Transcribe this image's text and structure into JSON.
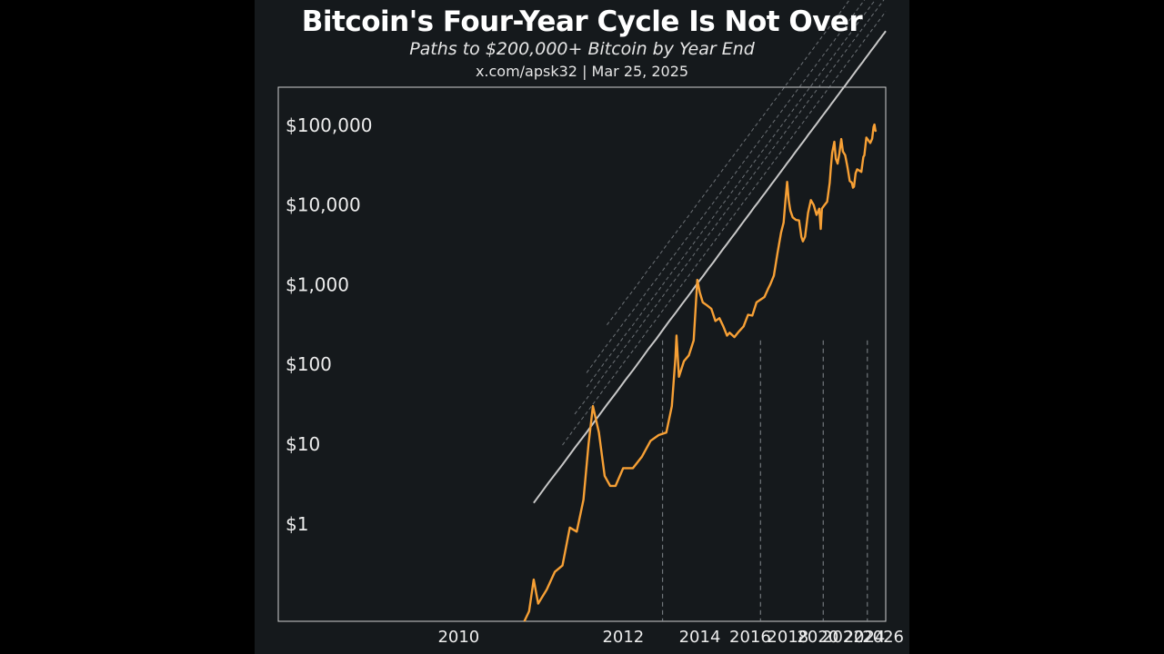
{
  "header": {
    "title": "Bitcoin's Four-Year Cycle Is Not Over",
    "subtitle": "Paths to $200,000+ Bitcoin by Year End",
    "source": "x.com/apsk32 | Mar 25, 2025"
  },
  "colors": {
    "background": "#15191c",
    "price_line": "#f7a035",
    "power_law_floor": "#c8c8c8",
    "channel_lines": "#8a8f94",
    "halving_lines": "#8a8f94",
    "frame": "#d0d0d0"
  },
  "chart_data": {
    "type": "line",
    "title": "Bitcoin's Four-Year Cycle Is Not Over",
    "subtitle": "Paths to $200,000+ Bitcoin by Year End",
    "xlabel": "",
    "ylabel": "",
    "y_scale": "log",
    "xlim": [
      2009.3,
      2026.3
    ],
    "ylim": [
      0.06,
      300000
    ],
    "grid": false,
    "x_ticks": [
      2010,
      2012,
      2014,
      2016,
      2018,
      2020,
      2022,
      2024,
      2026
    ],
    "x_tick_labels": [
      "2010",
      "2012",
      "2014",
      "2016",
      "2018",
      "2020",
      "2022",
      "2024",
      "2026"
    ],
    "y_ticks": [
      1,
      10,
      100,
      1000,
      10000,
      100000
    ],
    "y_tick_labels": [
      "$1",
      "$10",
      "$100",
      "$1,000",
      "$10,000",
      "$100,000"
    ],
    "halving_dates": [
      2012.9,
      2016.5,
      2020.4,
      2024.3
    ],
    "series": [
      {
        "style": "orange-solid",
        "x": [
          2010.55,
          2010.6,
          2010.65,
          2010.7,
          2010.8,
          2010.9,
          2011.0,
          2011.1,
          2011.2,
          2011.3,
          2011.38,
          2011.45,
          2011.55,
          2011.65,
          2011.75,
          2011.85,
          2012.0,
          2012.2,
          2012.4,
          2012.6,
          2012.8,
          2013.0,
          2013.15,
          2013.25,
          2013.28,
          2013.35,
          2013.5,
          2013.65,
          2013.8,
          2013.92,
          2014.0,
          2014.1,
          2014.25,
          2014.4,
          2014.55,
          2014.7,
          2014.85,
          2015.0,
          2015.1,
          2015.3,
          2015.5,
          2015.7,
          2015.9,
          2016.1,
          2016.3,
          2016.5,
          2016.7,
          2016.9,
          2017.0,
          2017.2,
          2017.4,
          2017.6,
          2017.75,
          2017.85,
          2017.96,
          2018.05,
          2018.15,
          2018.3,
          2018.5,
          2018.7,
          2018.85,
          2018.95,
          2019.1,
          2019.3,
          2019.5,
          2019.7,
          2019.9,
          2020.1,
          2020.21,
          2020.3,
          2020.5,
          2020.7,
          2020.9,
          2021.0,
          2021.1,
          2021.28,
          2021.4,
          2021.55,
          2021.7,
          2021.86,
          2022.0,
          2022.2,
          2022.4,
          2022.6,
          2022.8,
          2022.9,
          2023.0,
          2023.15,
          2023.3,
          2023.5,
          2023.7,
          2023.9,
          2024.0,
          2024.2,
          2024.4,
          2024.6,
          2024.8,
          2024.95,
          2025.05,
          2025.15,
          2025.23
        ],
        "y": [
          0.06,
          0.08,
          0.2,
          0.1,
          0.15,
          0.25,
          0.3,
          0.9,
          0.8,
          2,
          10,
          30,
          14,
          4,
          3,
          3,
          5,
          5,
          7,
          11,
          13,
          14,
          30,
          120,
          230,
          70,
          110,
          130,
          200,
          1150,
          800,
          600,
          550,
          500,
          350,
          380,
          300,
          230,
          250,
          220,
          260,
          300,
          420,
          410,
          600,
          650,
          700,
          900,
          1000,
          1300,
          2500,
          4500,
          6000,
          11000,
          19500,
          11500,
          8500,
          7000,
          6500,
          6400,
          4000,
          3500,
          4000,
          8000,
          11500,
          10000,
          7500,
          9000,
          5000,
          9000,
          10000,
          11000,
          19000,
          30000,
          45000,
          62000,
          38000,
          33000,
          45000,
          67000,
          47000,
          42000,
          30000,
          20000,
          19000,
          16500,
          17000,
          25000,
          28000,
          27000,
          26000,
          40000,
          42000,
          70000,
          65000,
          60000,
          68000,
          95000,
          102000,
          85000,
          87000
        ]
      },
      {
        "style": "white-solid",
        "x": [],
        "y": []
      },
      {
        "style": "gray-dashed",
        "x": [],
        "y": []
      },
      {
        "style": "gray-dashed",
        "x": [],
        "y": []
      },
      {
        "style": "gray-dashed",
        "x": [],
        "y": []
      },
      {
        "style": "gray-dashed",
        "x": [],
        "y": []
      },
      {
        "style": "gray-dashed",
        "x": [],
        "y": []
      }
    ]
  }
}
